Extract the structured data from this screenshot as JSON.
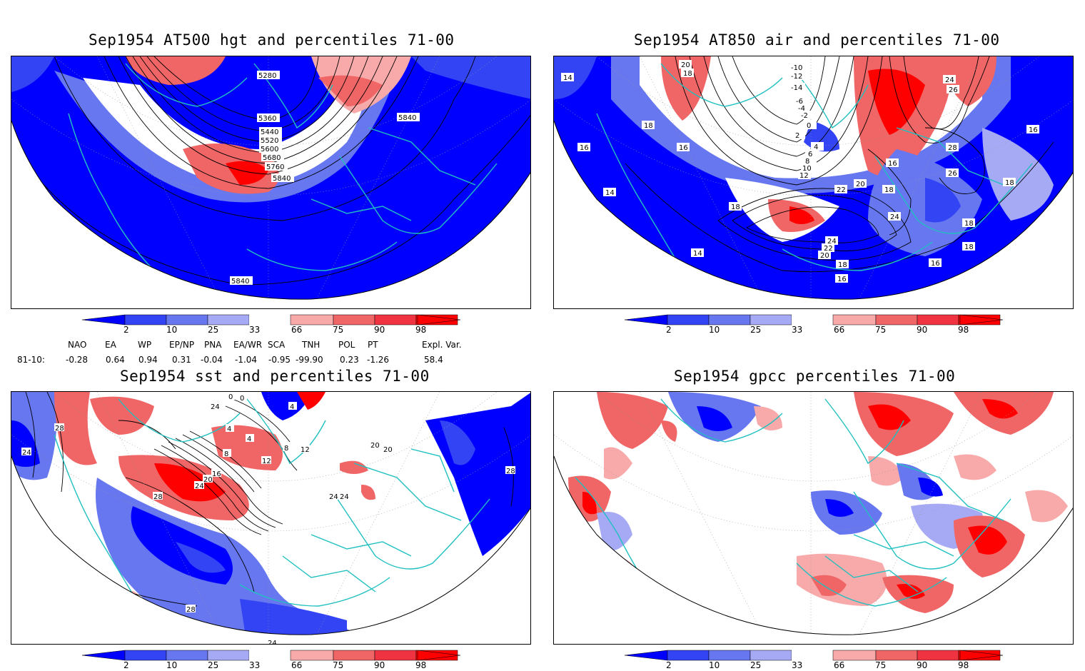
{
  "panels": [
    {
      "title": "Sep1954 AT500 hgt and percentiles 71-00",
      "contour_labels": [
        "5280",
        "5360",
        "5440",
        "5520",
        "5600",
        "5680",
        "5760",
        "5840",
        "5840",
        "5840"
      ]
    },
    {
      "title": "Sep1954 AT850 air and percentiles 71-00",
      "contour_labels": [
        "14",
        "20",
        "18",
        "-10",
        "-12",
        "-14",
        "24",
        "26",
        "-6",
        "-4",
        "-2",
        "0",
        "2",
        "4",
        "6",
        "8",
        "10",
        "12",
        "18",
        "16",
        "16",
        "16",
        "28",
        "26",
        "16",
        "22",
        "20",
        "18",
        "14",
        "24",
        "18",
        "14",
        "24",
        "22",
        "20",
        "18",
        "16",
        "18",
        "18",
        "16",
        "18"
      ]
    },
    {
      "title": "Sep1954 sst and percentiles 71-00",
      "contour_labels": [
        "28",
        "24",
        "0",
        "0",
        "24",
        "4",
        "4",
        "4",
        "8",
        "8",
        "12",
        "12",
        "16",
        "20",
        "24",
        "20",
        "20",
        "24",
        "24",
        "28",
        "28",
        "28",
        "24"
      ]
    },
    {
      "title": "Sep1954 gpcc percentiles 71-00",
      "contour_labels": []
    }
  ],
  "colorbar": {
    "ticks": [
      "2",
      "10",
      "25",
      "33",
      "66",
      "75",
      "90",
      "98"
    ],
    "colors": [
      "#0000ff",
      "#3344f4",
      "#6677f0",
      "#a6aaf5",
      "#ffffff",
      "#f8aaaa",
      "#f06666",
      "#f03340",
      "#ff0000"
    ]
  },
  "indices": {
    "headers": [
      "NAO",
      "EA",
      "WP",
      "EP/NP",
      "PNA",
      "EA/WR",
      "SCA",
      "TNH",
      "POL",
      "PT",
      "Expl. Var."
    ],
    "row_label": "81-10:",
    "values": [
      "-0.28",
      "0.64",
      "0.94",
      "0.31",
      "-0.04",
      "-1.04",
      "-0.95",
      "-99.90",
      "0.23",
      "-1.26",
      "58.4"
    ]
  }
}
